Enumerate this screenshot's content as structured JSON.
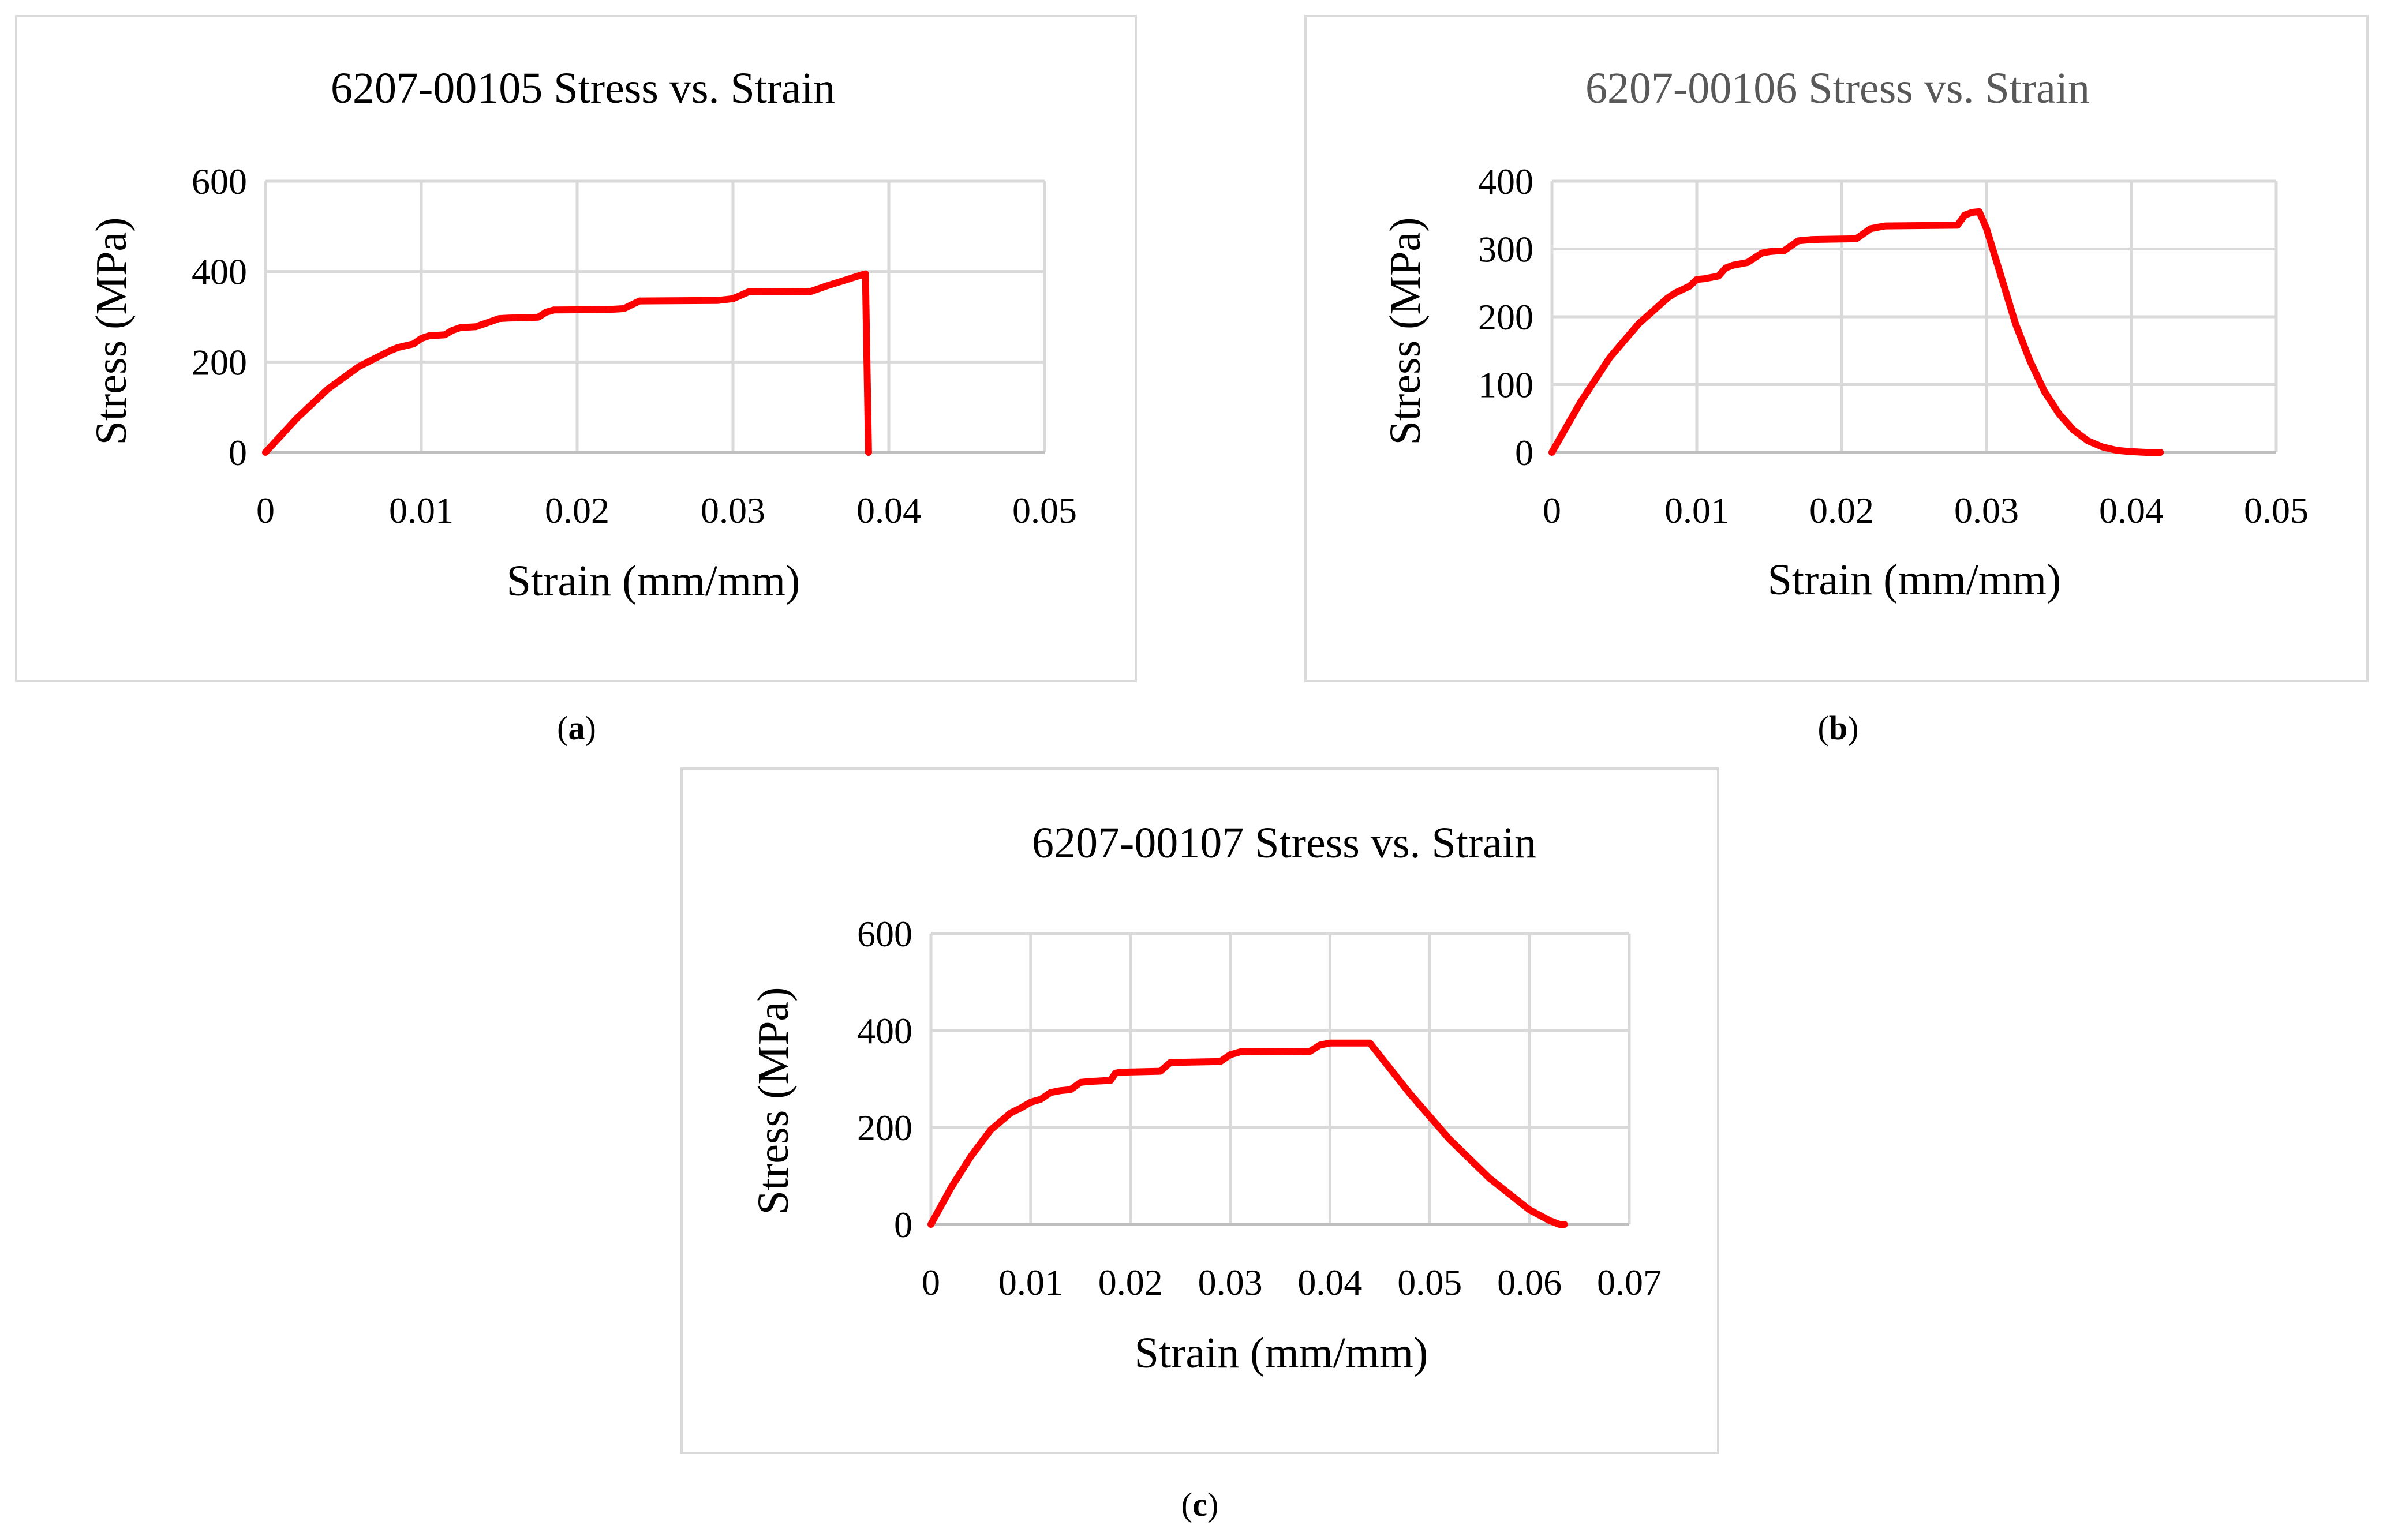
{
  "figure": {
    "captions": [
      "a",
      "b",
      "c"
    ]
  },
  "chart_data": [
    {
      "type": "line",
      "title": "6207-00105 Stress vs. Strain",
      "xlabel": "Strain (mm/mm)",
      "ylabel": "Stress (MPa)",
      "xlim": [
        0,
        0.05
      ],
      "ylim": [
        0,
        600
      ],
      "xticks": [
        "0",
        "0.01",
        "0.02",
        "0.03",
        "0.04",
        "0.05"
      ],
      "yticks": [
        "0",
        "200",
        "400",
        "600"
      ],
      "title_color": "#000000",
      "series": [
        {
          "name": "6207-00105",
          "color": "#ff0000",
          "x": [
            0,
            0.002,
            0.004,
            0.006,
            0.008,
            0.0085,
            0.0095,
            0.01,
            0.0105,
            0.0115,
            0.012,
            0.0125,
            0.0135,
            0.0145,
            0.015,
            0.0155,
            0.0175,
            0.018,
            0.0185,
            0.022,
            0.023,
            0.024,
            0.029,
            0.03,
            0.031,
            0.035,
            0.036,
            0.0383,
            0.0385,
            0.0387
          ],
          "y": [
            0,
            75,
            140,
            190,
            225,
            232,
            240,
            252,
            258,
            260,
            270,
            276,
            278,
            290,
            296,
            297,
            299,
            310,
            315,
            316,
            318,
            335,
            336,
            340,
            355,
            356,
            368,
            393,
            395,
            0
          ]
        }
      ]
    },
    {
      "type": "line",
      "title": "6207-00106 Stress vs. Strain",
      "xlabel": "Strain (mm/mm)",
      "ylabel": "Stress (MPa)",
      "xlim": [
        0,
        0.05
      ],
      "ylim": [
        0,
        400
      ],
      "xticks": [
        "0",
        "0.01",
        "0.02",
        "0.03",
        "0.04",
        "0.05"
      ],
      "yticks": [
        "0",
        "100",
        "200",
        "300",
        "400"
      ],
      "title_color": "#595959",
      "series": [
        {
          "name": "6207-00106",
          "color": "#ff0000",
          "x": [
            0,
            0.002,
            0.004,
            0.006,
            0.008,
            0.0085,
            0.0095,
            0.01,
            0.0105,
            0.0115,
            0.012,
            0.0125,
            0.0135,
            0.0145,
            0.015,
            0.0155,
            0.016,
            0.017,
            0.018,
            0.021,
            0.022,
            0.023,
            0.028,
            0.0285,
            0.029,
            0.0295,
            0.03,
            0.031,
            0.032,
            0.033,
            0.034,
            0.035,
            0.036,
            0.037,
            0.038,
            0.039,
            0.04,
            0.041,
            0.042
          ],
          "y": [
            0,
            75,
            140,
            190,
            228,
            235,
            245,
            255,
            256,
            260,
            272,
            276,
            280,
            294,
            296,
            297,
            297,
            312,
            314,
            315,
            330,
            334,
            335,
            350,
            354,
            355,
            330,
            260,
            190,
            135,
            90,
            57,
            33,
            17,
            8,
            3,
            1,
            0,
            0
          ]
        }
      ]
    },
    {
      "type": "line",
      "title": "6207-00107 Stress vs. Strain",
      "xlabel": "Strain (mm/mm)",
      "ylabel": "Stress (MPa)",
      "xlim": [
        0,
        0.07
      ],
      "ylim": [
        0,
        600
      ],
      "xticks": [
        "0",
        "0.01",
        "0.02",
        "0.03",
        "0.04",
        "0.05",
        "0.06",
        "0.07"
      ],
      "yticks": [
        "0",
        "200",
        "400",
        "600"
      ],
      "title_color": "#000000",
      "series": [
        {
          "name": "6207-00107",
          "color": "#ff0000",
          "x": [
            0,
            0.002,
            0.004,
            0.006,
            0.008,
            0.009,
            0.01,
            0.011,
            0.012,
            0.013,
            0.014,
            0.015,
            0.016,
            0.018,
            0.0185,
            0.019,
            0.023,
            0.024,
            0.029,
            0.03,
            0.031,
            0.038,
            0.039,
            0.04,
            0.044,
            0.048,
            0.052,
            0.056,
            0.06,
            0.062,
            0.063,
            0.0635
          ],
          "y": [
            0,
            75,
            140,
            195,
            230,
            240,
            252,
            258,
            272,
            276,
            278,
            293,
            295,
            297,
            312,
            314,
            316,
            334,
            336,
            350,
            356,
            357,
            370,
            374,
            374,
            270,
            175,
            95,
            30,
            8,
            0,
            0
          ]
        }
      ]
    }
  ]
}
